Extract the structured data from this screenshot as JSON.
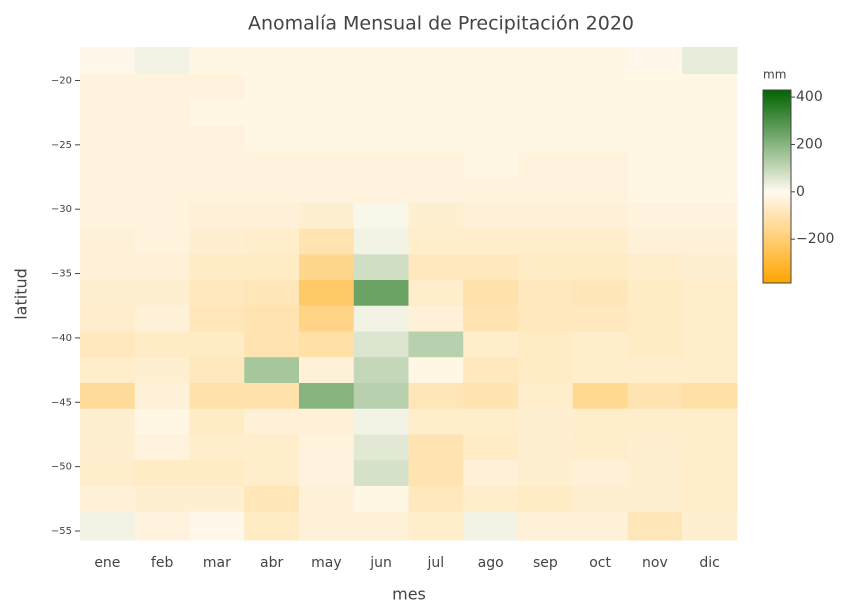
{
  "chart_data": {
    "type": "heatmap",
    "title": "Anomalía Mensual de Precipitación 2020",
    "x_label": "mes",
    "y_label": "latitud",
    "categories": [
      "ene",
      "feb",
      "mar",
      "abr",
      "may",
      "jun",
      "jul",
      "ago",
      "sep",
      "oct",
      "nov",
      "dic"
    ],
    "y": [
      -18.5,
      -20.5,
      -22.5,
      -24.5,
      -26.5,
      -28.5,
      -30.5,
      -32.5,
      -34.5,
      -36.5,
      -38.5,
      -40.5,
      -42.5,
      -44.5,
      -46.5,
      -48.5,
      -50.5,
      -52.5,
      -54.5
    ],
    "z": [
      [
        -10,
        20,
        -20,
        -20,
        -20,
        -20,
        -20,
        -20,
        -20,
        -20,
        -10,
        40
      ],
      [
        -30,
        -30,
        -30,
        -20,
        -20,
        -20,
        -20,
        -20,
        -20,
        -20,
        -20,
        -20
      ],
      [
        -30,
        -30,
        -20,
        -20,
        -20,
        -20,
        -20,
        -20,
        -20,
        -20,
        -20,
        -20
      ],
      [
        -30,
        -30,
        -30,
        -20,
        -20,
        -20,
        -20,
        -20,
        -20,
        -20,
        -20,
        -20
      ],
      [
        -30,
        -30,
        -30,
        -30,
        -30,
        -30,
        -30,
        -20,
        -30,
        -30,
        -20,
        -20
      ],
      [
        -30,
        -30,
        -30,
        -30,
        -30,
        -30,
        -30,
        -30,
        -30,
        -30,
        -20,
        -20
      ],
      [
        -30,
        -30,
        -40,
        -40,
        -50,
        10,
        -50,
        -40,
        -40,
        -40,
        -30,
        -30
      ],
      [
        -40,
        -30,
        -50,
        -60,
        -100,
        20,
        -60,
        -60,
        -60,
        -60,
        -40,
        -40
      ],
      [
        -40,
        -40,
        -70,
        -70,
        -160,
        80,
        -80,
        -80,
        -70,
        -70,
        -60,
        -50
      ],
      [
        -50,
        -50,
        -80,
        -90,
        -220,
        250,
        -60,
        -110,
        -80,
        -90,
        -70,
        -60
      ],
      [
        -60,
        -40,
        -90,
        -100,
        -170,
        20,
        -40,
        -100,
        -80,
        -80,
        -70,
        -60
      ],
      [
        -80,
        -70,
        -70,
        -100,
        -120,
        60,
        120,
        -60,
        -70,
        -60,
        -70,
        -60
      ],
      [
        -60,
        -50,
        -80,
        150,
        -40,
        100,
        -20,
        -80,
        -70,
        -60,
        -60,
        -60
      ],
      [
        -140,
        -40,
        -110,
        -110,
        200,
        120,
        -90,
        -100,
        -60,
        -150,
        -100,
        -120
      ],
      [
        -50,
        -20,
        -70,
        -40,
        -40,
        20,
        -60,
        -60,
        -50,
        -60,
        -60,
        -60
      ],
      [
        -50,
        -30,
        -60,
        -60,
        -30,
        50,
        -100,
        -70,
        -50,
        -60,
        -50,
        -60
      ],
      [
        -60,
        -70,
        -70,
        -60,
        -30,
        70,
        -100,
        -40,
        -50,
        -40,
        -50,
        -60
      ],
      [
        -40,
        -50,
        -50,
        -90,
        -40,
        -20,
        -80,
        -60,
        -70,
        -50,
        -50,
        -60
      ],
      [
        20,
        -30,
        -10,
        -70,
        -40,
        -40,
        -60,
        20,
        -40,
        -40,
        -90,
        -50
      ]
    ],
    "ylim": [
      -55.7,
      -17.4
    ],
    "yticks": [
      {
        "value": -55,
        "label": "−55"
      },
      {
        "value": -50,
        "label": "−50"
      },
      {
        "value": -45,
        "label": "−45"
      },
      {
        "value": -40,
        "label": "−40"
      },
      {
        "value": -35,
        "label": "−35"
      },
      {
        "value": -30,
        "label": "−30"
      },
      {
        "value": -25,
        "label": "−25"
      },
      {
        "value": -20,
        "label": "−20"
      }
    ],
    "colorbar_title": "mm",
    "zlim": [
      -385,
      430
    ],
    "zticks": [
      {
        "value": -200,
        "label": "−200"
      },
      0,
      200,
      400
    ],
    "colorscale": [
      [
        -385,
        "#ffa500"
      ],
      [
        0,
        "#fffaf0"
      ],
      [
        430,
        "#006400"
      ]
    ]
  }
}
